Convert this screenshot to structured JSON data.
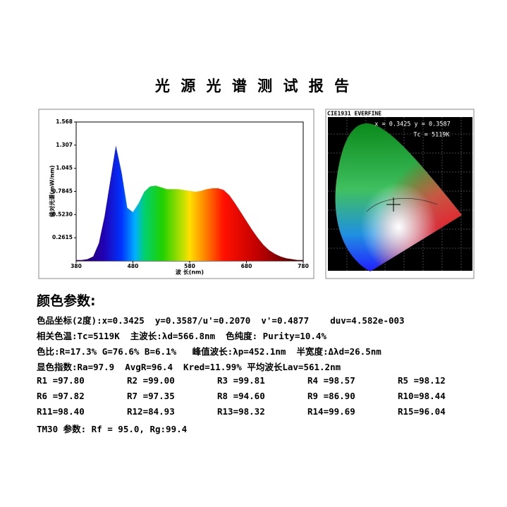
{
  "title": "光 源 光 谱 测 试 报 告",
  "chart_data": {
    "type": "area",
    "ylabel": "绝对光谱(mW/nm)",
    "xlabel": "波 长(nm)",
    "x": [
      380,
      390,
      400,
      410,
      420,
      430,
      440,
      450,
      460,
      470,
      480,
      490,
      500,
      510,
      520,
      530,
      540,
      550,
      560,
      570,
      580,
      590,
      600,
      610,
      620,
      630,
      640,
      650,
      660,
      670,
      680,
      690,
      700,
      710,
      720,
      730,
      740,
      750,
      760,
      770,
      780
    ],
    "values": [
      0.01,
      0.01,
      0.02,
      0.05,
      0.2,
      0.5,
      0.9,
      1.3,
      1.0,
      0.6,
      0.55,
      0.65,
      0.78,
      0.84,
      0.85,
      0.83,
      0.81,
      0.81,
      0.81,
      0.8,
      0.79,
      0.78,
      0.79,
      0.81,
      0.82,
      0.82,
      0.8,
      0.74,
      0.65,
      0.55,
      0.45,
      0.35,
      0.26,
      0.18,
      0.12,
      0.08,
      0.05,
      0.03,
      0.02,
      0.01,
      0.01
    ],
    "xlim": [
      380,
      780
    ],
    "xticks": [
      380,
      480,
      580,
      680,
      780
    ],
    "ylim": [
      0,
      1.568
    ],
    "yticks": [
      0.2615,
      {
        "value": 0.523,
        "label": "0.5230"
      },
      0.7845,
      1.045,
      1.307,
      1.568
    ]
  },
  "cie": {
    "header": "CIE1931 EVERFINE",
    "coords": "x = 0.3425  y = 0.3587",
    "tc": "Tc = 5119K"
  },
  "params": {
    "heading": "颜色参数:",
    "lines": [
      "色品坐标(2度):x=0.3425  y=0.3587/u'=0.2070  v'=0.4877    duv=4.582e-003",
      "相关色温:Tc=5119K  主波长:λd=566.8nm  色纯度: Purity=10.4%",
      "色比:R=17.3% G=76.6% B=6.1%   峰值波长:λp=452.1nm  半宽度:Δλd=26.5nm",
      "显色指数:Ra=97.9  AvgR=96.4  Kred=11.99% 平均波长Lav=561.2nm"
    ],
    "r_table": [
      [
        "R1 =97.80",
        "R2 =99.00",
        "R3 =99.81",
        "R4 =98.57",
        "R5 =98.12"
      ],
      [
        "R6 =97.82",
        "R7 =97.35",
        "R8 =94.60",
        "R9 =86.90",
        "R10=98.44"
      ],
      [
        "R11=98.40",
        "R12=84.93",
        "R13=98.32",
        "R14=99.69",
        "R15=96.04"
      ]
    ],
    "tm30": "TM30 参数: Rf = 95.0, Rg:99.4"
  }
}
